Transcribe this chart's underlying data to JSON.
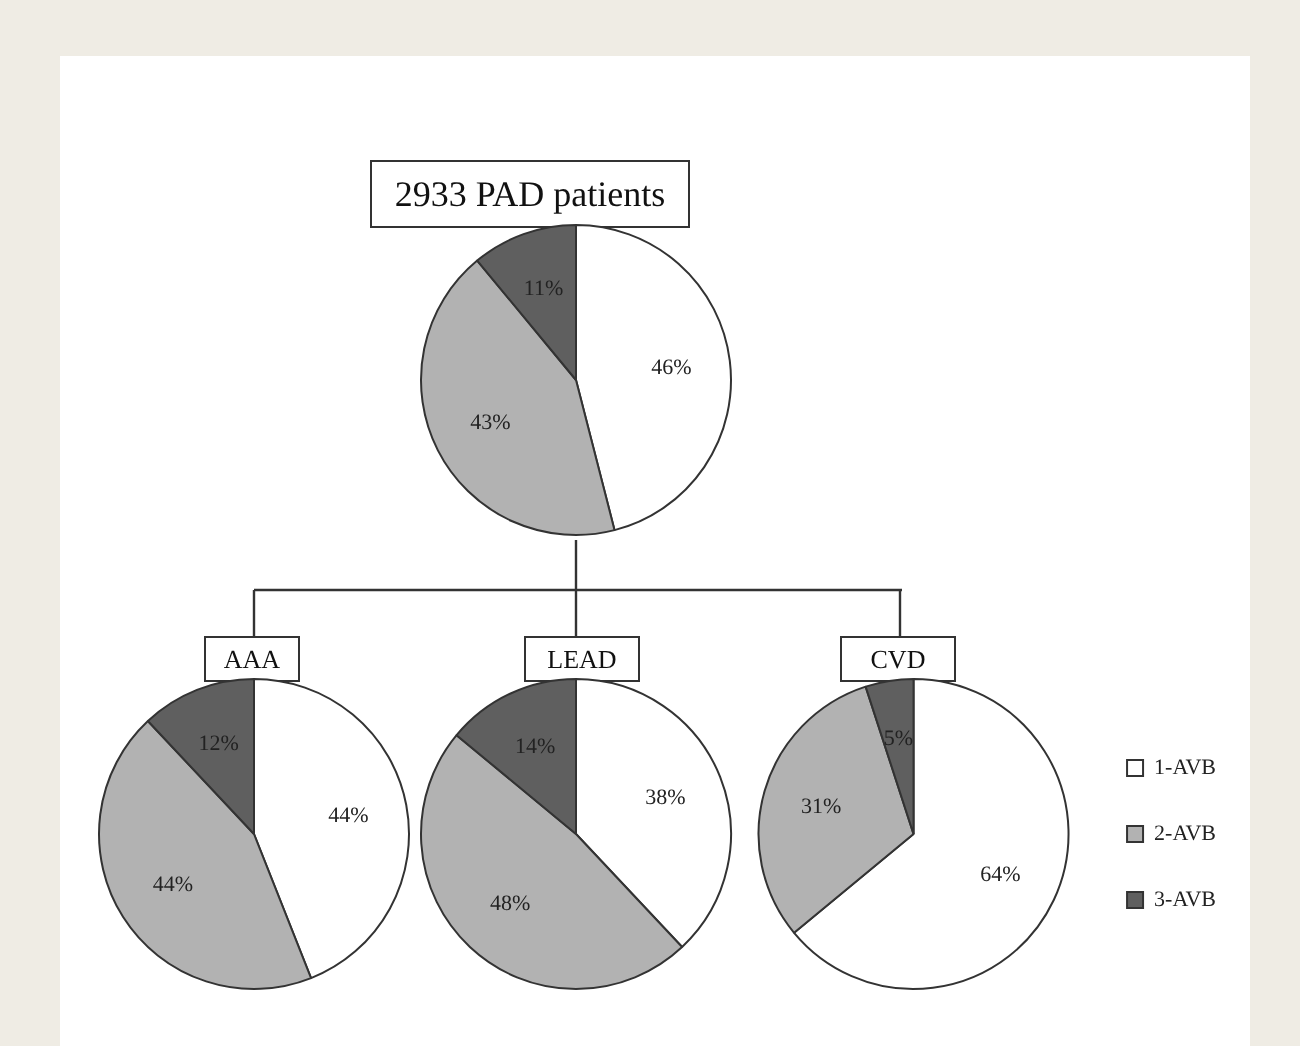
{
  "chart_data": [
    {
      "type": "pie",
      "title": "2933 PAD patients",
      "values": [
        46,
        43,
        11
      ],
      "colors": [
        "#ffffff",
        "#b2b2b2",
        "#5f5f5f"
      ],
      "value_labels": [
        "46%",
        "43%",
        "11%"
      ]
    },
    {
      "type": "pie",
      "title": "AAA",
      "values": [
        44,
        44,
        12
      ],
      "colors": [
        "#ffffff",
        "#b2b2b2",
        "#5f5f5f"
      ],
      "value_labels": [
        "44%",
        "44%",
        "12%"
      ]
    },
    {
      "type": "pie",
      "title": "LEAD",
      "values": [
        38,
        48,
        14
      ],
      "colors": [
        "#ffffff",
        "#b2b2b2",
        "#5f5f5f"
      ],
      "value_labels": [
        "38%",
        "48%",
        "14%"
      ]
    },
    {
      "type": "pie",
      "title": "CVD",
      "categories": [
        "1-AVB",
        "2-AVB",
        "3-AVB"
      ],
      "values": [
        64,
        31,
        5
      ],
      "colors": [
        "#ffffff",
        "#b2b2b2",
        "#5f5f5f"
      ],
      "value_labels": [
        "64%",
        "31%",
        "5%"
      ],
      "legend": "right"
    }
  ]
}
